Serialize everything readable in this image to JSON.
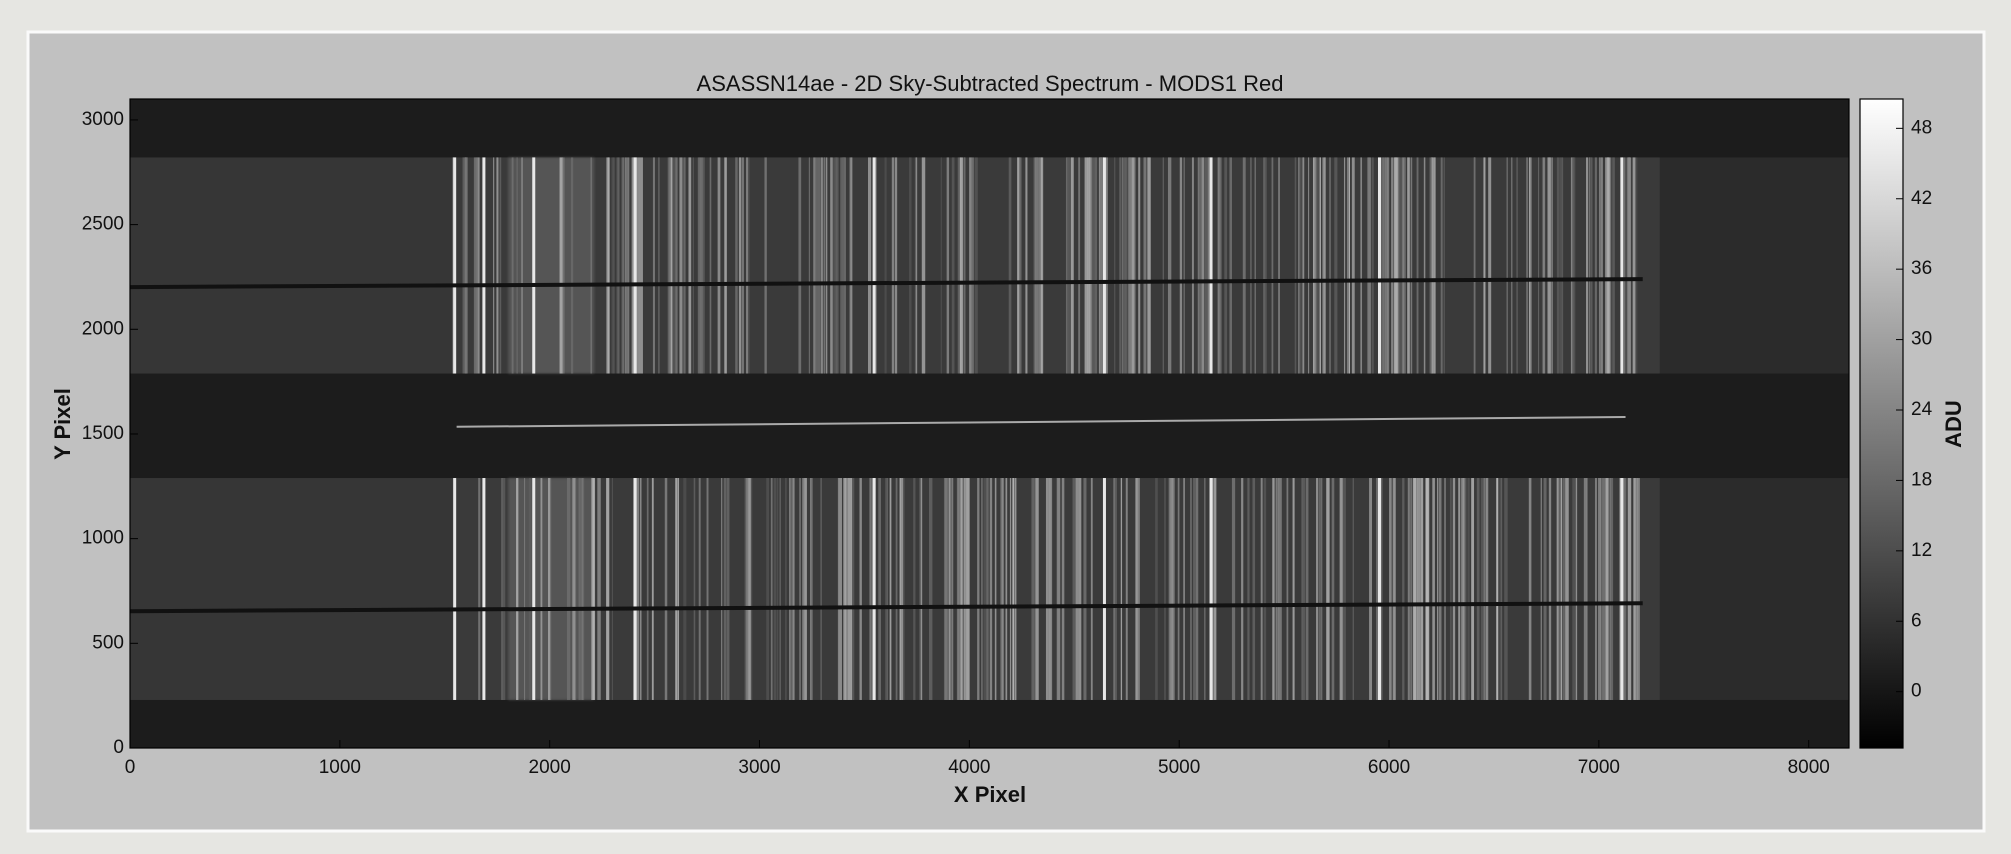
{
  "chart_data": {
    "type": "image",
    "title": "ASASSN14ae - 2D Sky-Subtracted Spectrum - MODS1 Red",
    "xlabel": "X Pixel",
    "ylabel": "Y Pixel",
    "xlim": [
      0,
      8192
    ],
    "ylim": [
      0,
      3100
    ],
    "xticks": [
      0,
      1000,
      2000,
      3000,
      4000,
      5000,
      6000,
      7000,
      8000
    ],
    "yticks": [
      0,
      500,
      1000,
      1500,
      2000,
      2500,
      3000
    ],
    "colorbar": {
      "label": "ADU",
      "lim": [
        -4.8,
        50.5
      ],
      "ticks": [
        0,
        6,
        12,
        18,
        24,
        30,
        36,
        42,
        48
      ]
    }
  }
}
